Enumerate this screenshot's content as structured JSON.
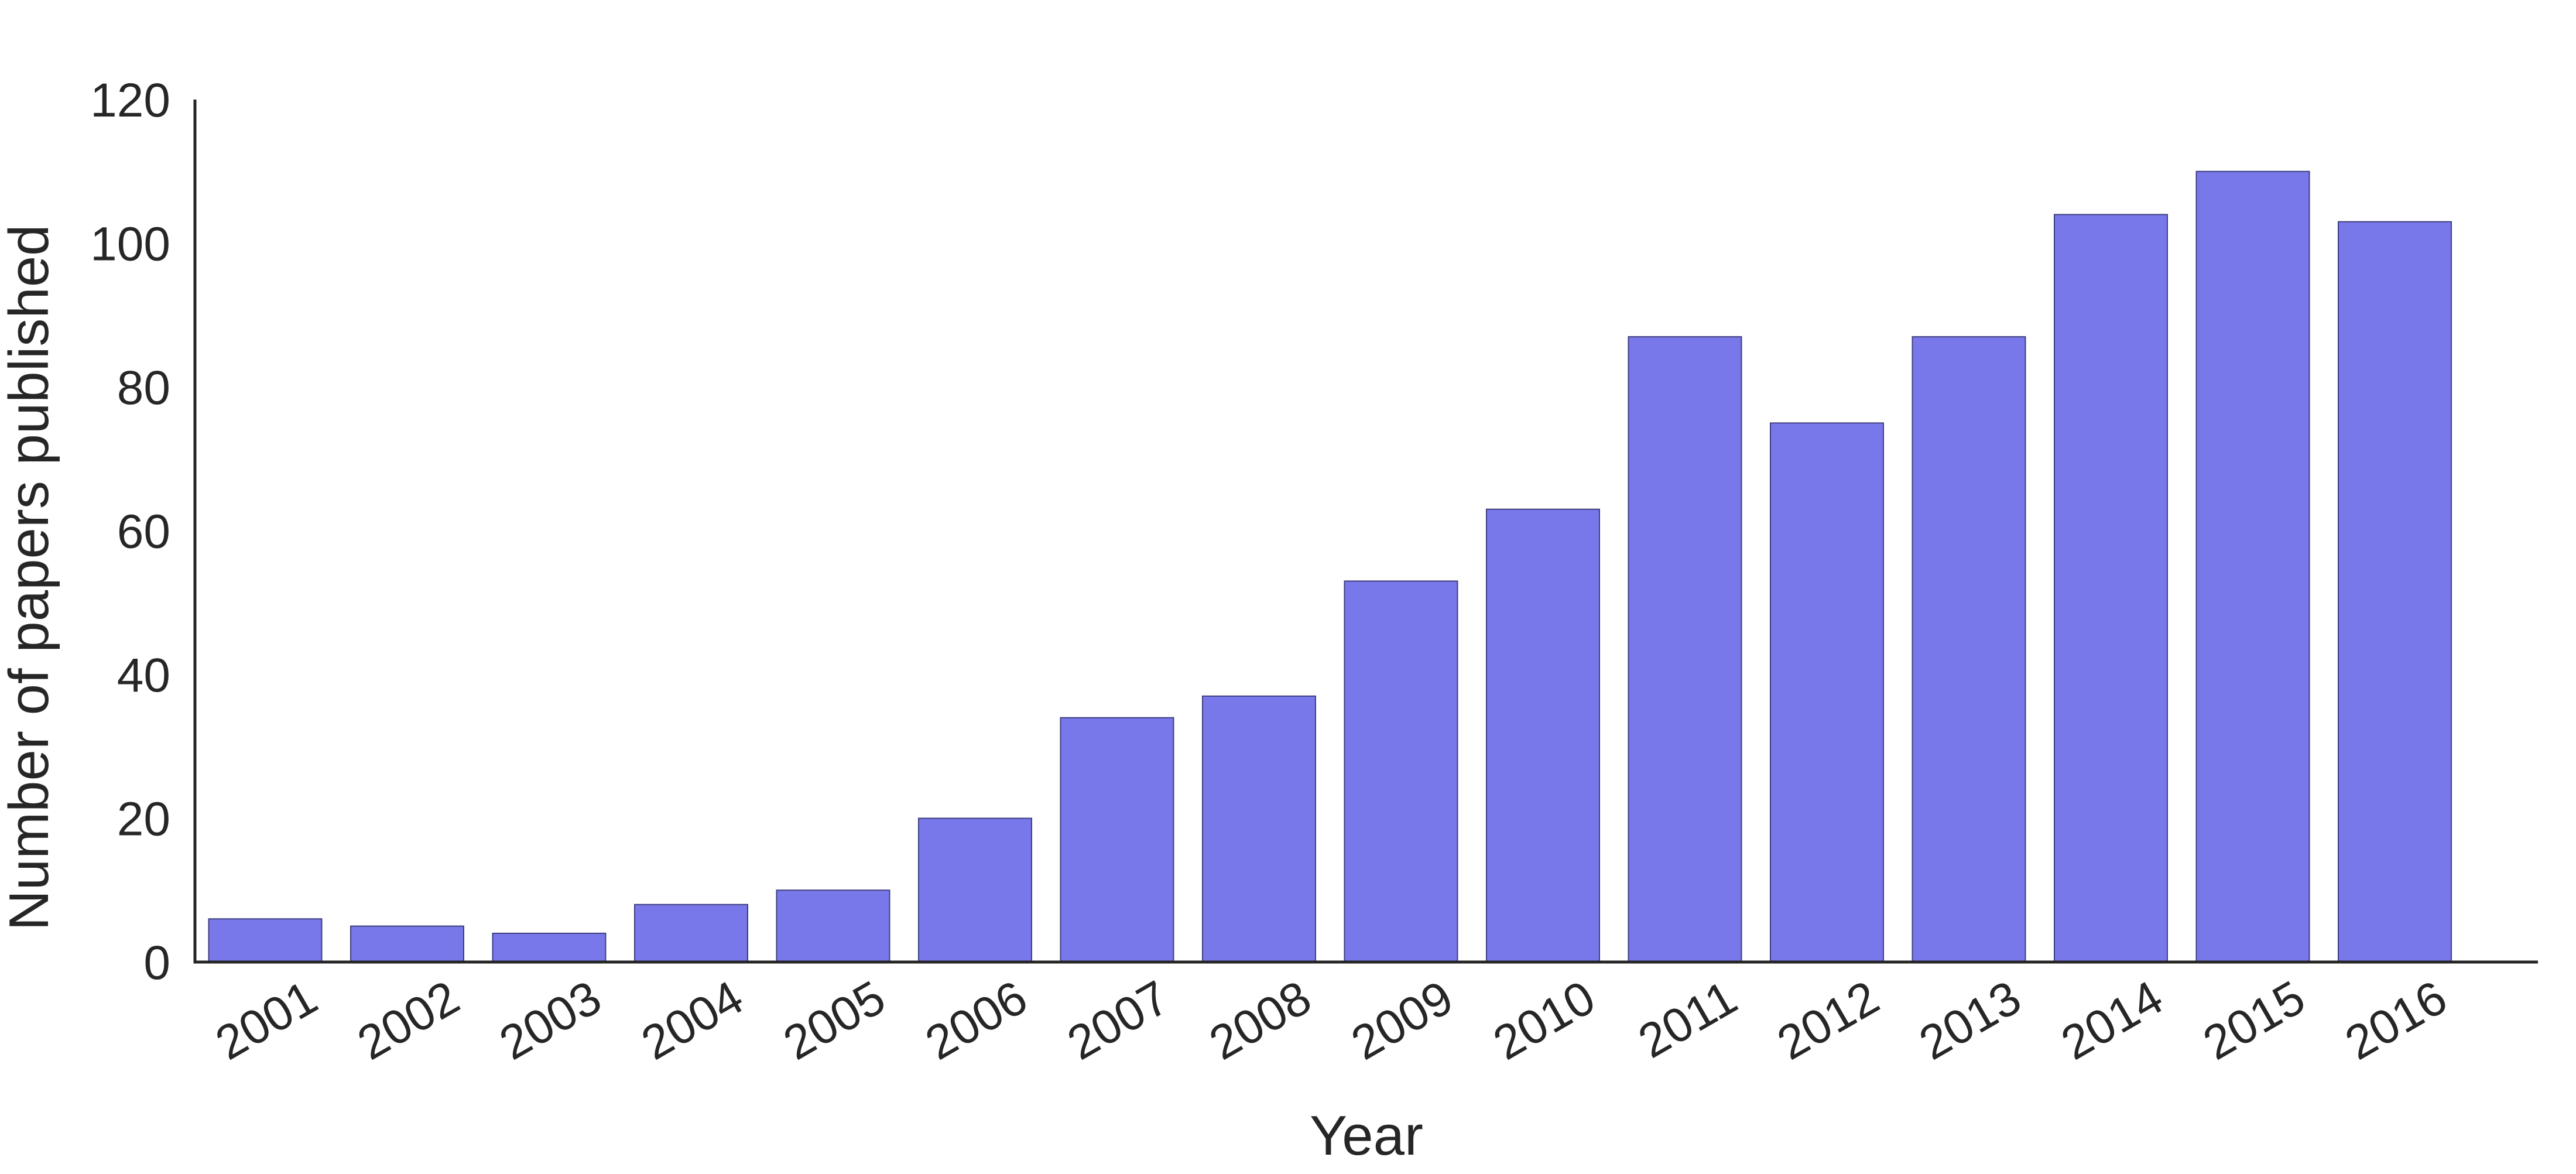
{
  "chart_data": {
    "type": "bar",
    "title": "",
    "xlabel": "Year",
    "ylabel": "Number of papers published",
    "categories": [
      "2001",
      "2002",
      "2003",
      "2004",
      "2005",
      "2006",
      "2007",
      "2008",
      "2009",
      "2010",
      "2011",
      "2012",
      "2013",
      "2014",
      "2015",
      "2016"
    ],
    "values": [
      6,
      5,
      4,
      8,
      10,
      20,
      34,
      37,
      53,
      63,
      87,
      75,
      87,
      104,
      110,
      103
    ],
    "ylim": [
      0,
      120
    ],
    "yticks": [
      0,
      20,
      40,
      60,
      80,
      100,
      120
    ],
    "ytick_labels": [
      "0",
      "20",
      "40",
      "60",
      "80",
      "100",
      "120"
    ],
    "bar_color": "#7878EA",
    "grid": false,
    "legend": "none"
  }
}
